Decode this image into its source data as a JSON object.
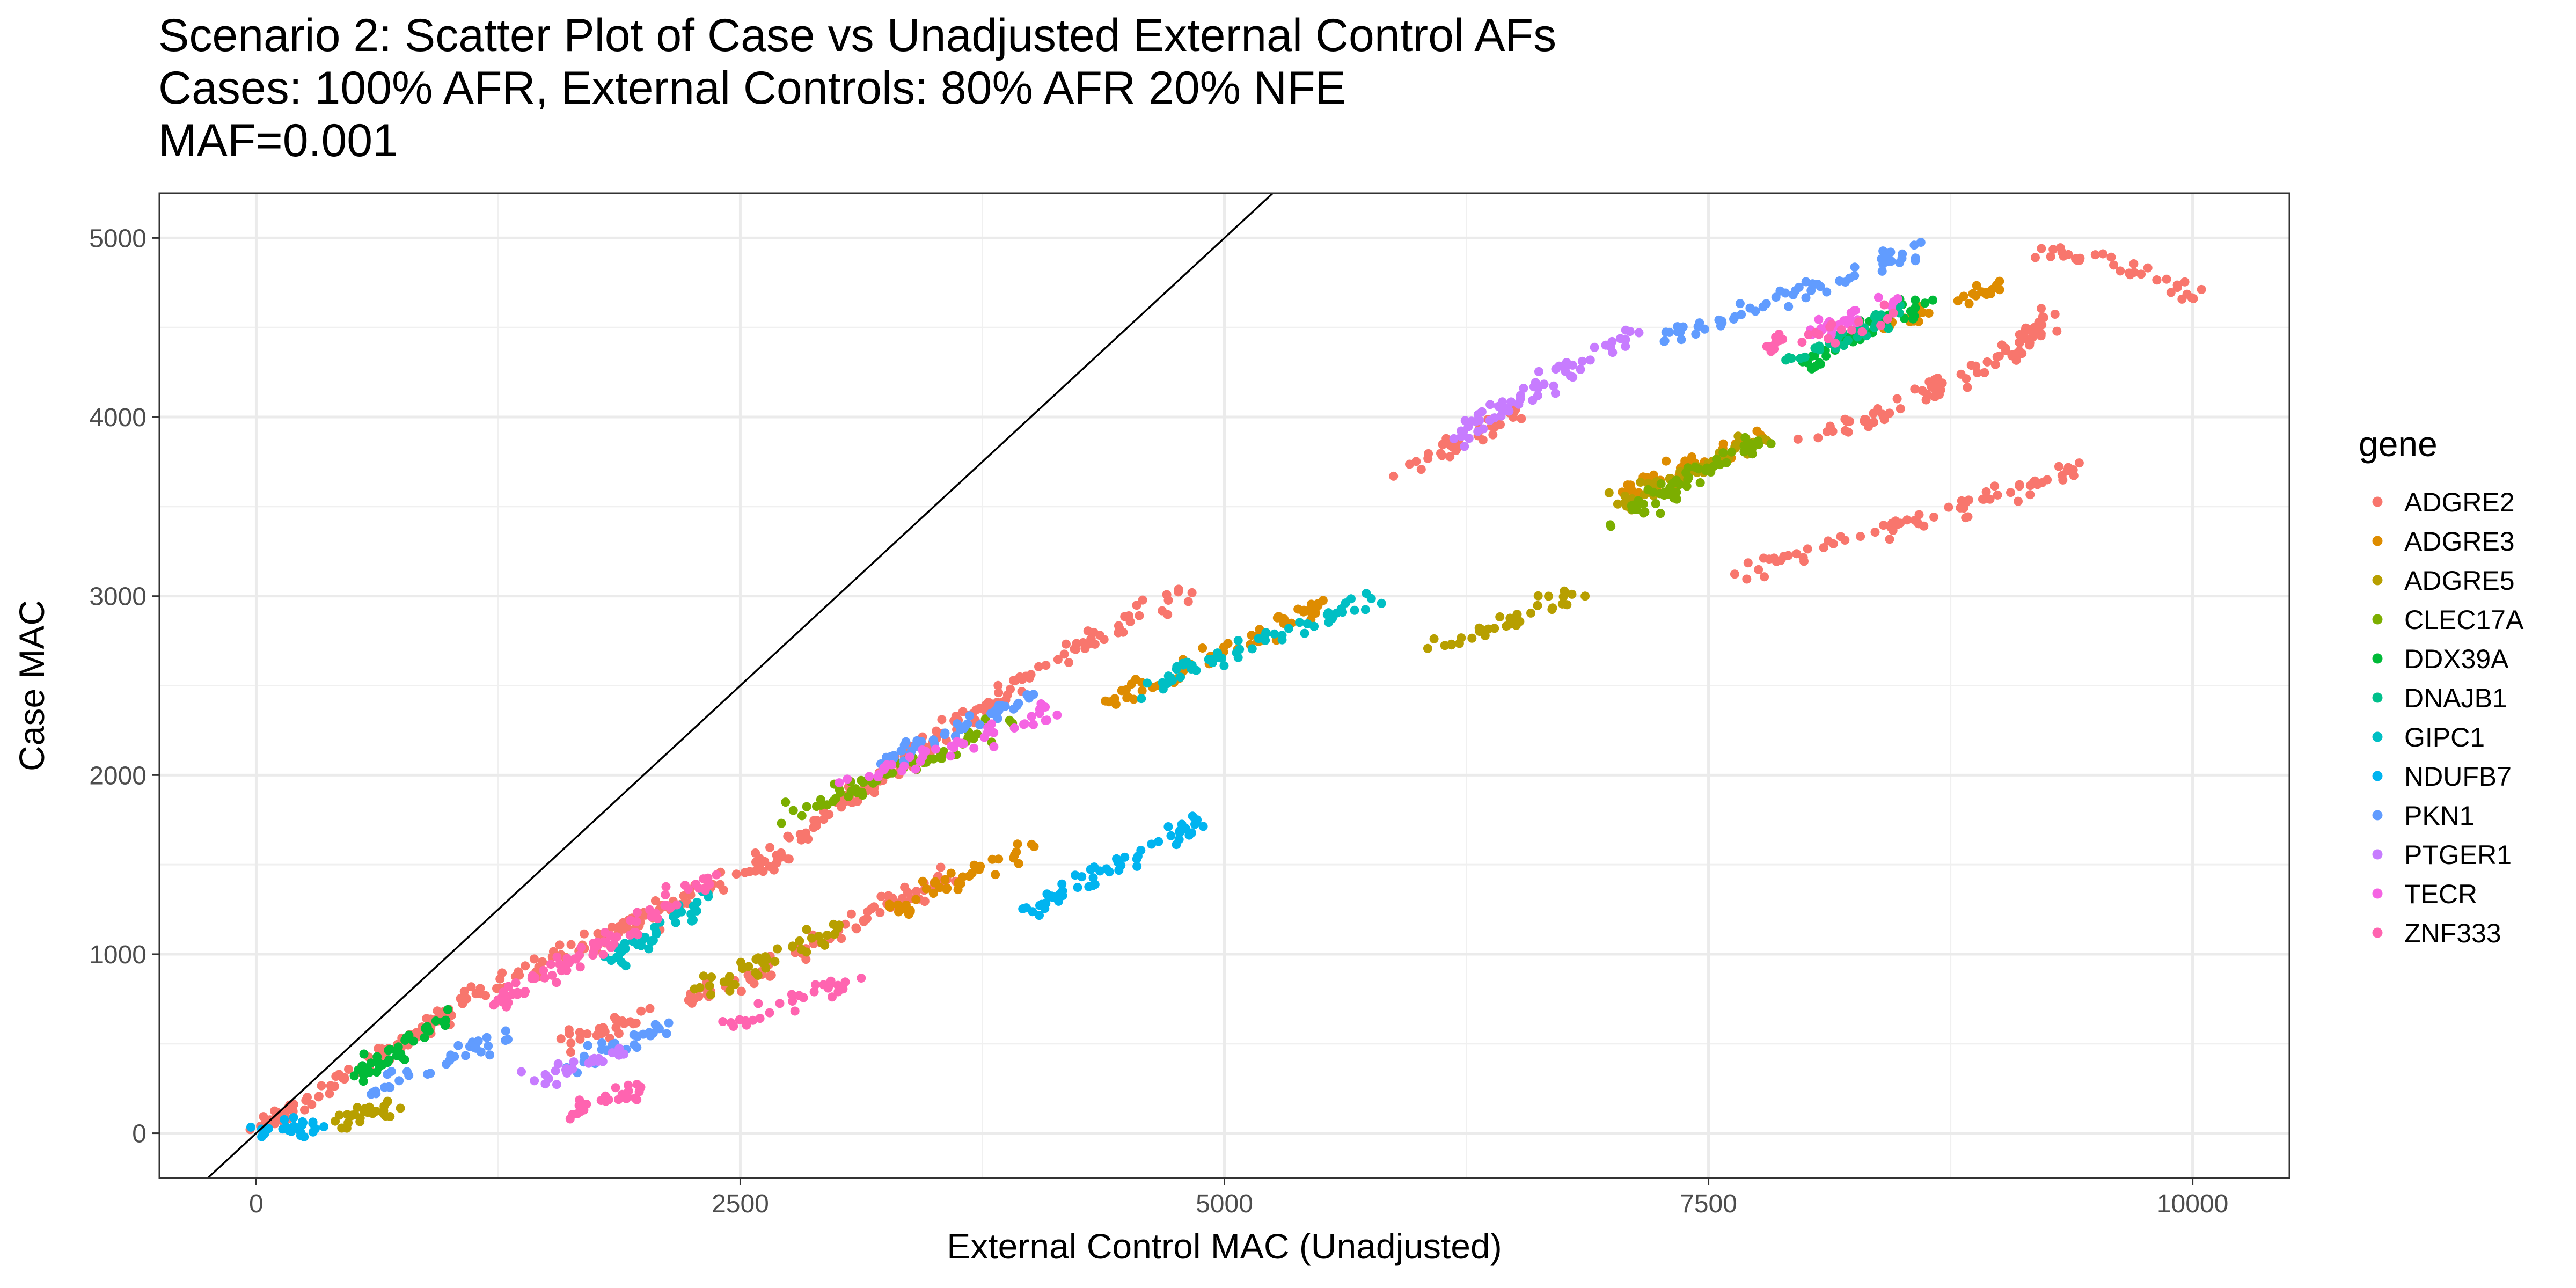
{
  "chart_data": {
    "type": "scatter",
    "title": [
      "Scenario 2: Scatter Plot of Case vs Unadjusted External Control AFs",
      "Cases: 100% AFR, External Controls: 80% AFR 20% NFE",
      "MAF=0.001"
    ],
    "xlabel": "External Control MAC (Unadjusted)",
    "ylabel": "Case MAC",
    "xlim": [
      -500,
      10500
    ],
    "ylim": [
      -250,
      5250
    ],
    "x_ticks": [
      0,
      2500,
      5000,
      7500,
      10000
    ],
    "y_ticks": [
      0,
      1000,
      2000,
      3000,
      4000,
      5000
    ],
    "x_tick_labels": [
      "0",
      "2500",
      "5000",
      "7500",
      "10000"
    ],
    "y_tick_labels": [
      "0",
      "1000",
      "2000",
      "3000",
      "4000",
      "5000"
    ],
    "grid": true,
    "reference_line": {
      "intercept": 0,
      "slope": 1
    },
    "legend": {
      "title": "gene",
      "position": "right"
    },
    "series": [
      {
        "name": "ADGRE2",
        "color": "#F8766D",
        "segments": [
          [
            [
              0,
              0
            ],
            [
              1200,
              800
            ],
            [
              2600,
              1500
            ],
            [
              3900,
              2500
            ],
            [
              4800,
              3050
            ]
          ],
          [
            [
              1600,
              500
            ],
            [
              2400,
              800
            ],
            [
              3600,
              1450
            ]
          ],
          [
            [
              5900,
              3700
            ],
            [
              6500,
              4000
            ]
          ],
          [
            [
              8000,
              3850
            ],
            [
              9000,
              4300
            ],
            [
              9300,
              4600
            ]
          ],
          [
            [
              7600,
              3100
            ],
            [
              8500,
              3400
            ],
            [
              9400,
              3700
            ]
          ],
          [
            [
              9200,
              4950
            ],
            [
              9800,
              4800
            ],
            [
              10000,
              4650
            ]
          ]
        ]
      },
      {
        "name": "ADGRE3",
        "color": "#DE8C00",
        "segments": [
          [
            [
              3300,
              1250
            ],
            [
              4000,
              1600
            ]
          ],
          [
            [
              4400,
              2400
            ],
            [
              5500,
              2950
            ]
          ],
          [
            [
              7000,
              3550
            ],
            [
              7800,
              3900
            ]
          ],
          [
            [
              8400,
              4500
            ],
            [
              9000,
              4750
            ]
          ]
        ]
      },
      {
        "name": "ADGRE5",
        "color": "#B79F00",
        "segments": [
          [
            [
              400,
              50
            ],
            [
              700,
              150
            ]
          ],
          [
            [
              2300,
              800
            ],
            [
              3000,
              1150
            ]
          ],
          [
            [
              6100,
              2700
            ],
            [
              6800,
              3000
            ]
          ],
          [
            [
              7000,
              3500
            ],
            [
              7800,
              3900
            ]
          ]
        ]
      },
      {
        "name": "CLEC17A",
        "color": "#7CAE00",
        "segments": [
          [
            [
              2700,
              1750
            ],
            [
              3900,
              2300
            ]
          ],
          [
            [
              7000,
              3400
            ],
            [
              7800,
              3900
            ]
          ]
        ]
      },
      {
        "name": "DDX39A",
        "color": "#00BA38",
        "segments": [
          [
            [
              500,
              300
            ],
            [
              1000,
              650
            ]
          ],
          [
            [
              8000,
              4300
            ],
            [
              8600,
              4650
            ]
          ]
        ]
      },
      {
        "name": "DNAJB1",
        "color": "#00C08B",
        "segments": [
          [
            [
              7900,
              4300
            ],
            [
              8500,
              4600
            ]
          ]
        ]
      },
      {
        "name": "GIPC1",
        "color": "#00BFC4",
        "segments": [
          [
            [
              1800,
              950
            ],
            [
              2300,
              1300
            ]
          ],
          [
            [
              4600,
              2500
            ],
            [
              5800,
              3000
            ]
          ]
        ]
      },
      {
        "name": "NDUFB7",
        "color": "#00B4F0",
        "segments": [
          [
            [
              0,
              0
            ],
            [
              300,
              50
            ]
          ],
          [
            [
              4000,
              1250
            ],
            [
              4900,
              1750
            ]
          ]
        ]
      },
      {
        "name": "PKN1",
        "color": "#619CFF",
        "segments": [
          [
            [
              600,
              250
            ],
            [
              1300,
              550
            ]
          ],
          [
            [
              1600,
              350
            ],
            [
              2100,
              600
            ]
          ],
          [
            [
              3200,
              2050
            ],
            [
              4000,
              2450
            ]
          ],
          [
            [
              7200,
              4400
            ],
            [
              8600,
              4950
            ]
          ]
        ]
      },
      {
        "name": "PTGER1",
        "color": "#C77CFF",
        "segments": [
          [
            [
              1400,
              300
            ],
            [
              1900,
              450
            ]
          ],
          [
            [
              6200,
              3900
            ],
            [
              7100,
              4450
            ]
          ]
        ]
      },
      {
        "name": "TECR",
        "color": "#F564E3",
        "segments": [
          [
            [
              3000,
              1950
            ],
            [
              4100,
              2350
            ]
          ],
          [
            [
              8000,
              4450
            ],
            [
              8500,
              4650
            ]
          ]
        ]
      },
      {
        "name": "ZNF333",
        "color": "#FF64B0",
        "segments": [
          [
            [
              1600,
              100
            ],
            [
              2000,
              250
            ]
          ],
          [
            [
              2400,
              600
            ],
            [
              3100,
              850
            ]
          ],
          [
            [
              1200,
              700
            ],
            [
              2400,
              1450
            ]
          ],
          [
            [
              7800,
              4400
            ],
            [
              8400,
              4550
            ]
          ]
        ]
      }
    ]
  }
}
